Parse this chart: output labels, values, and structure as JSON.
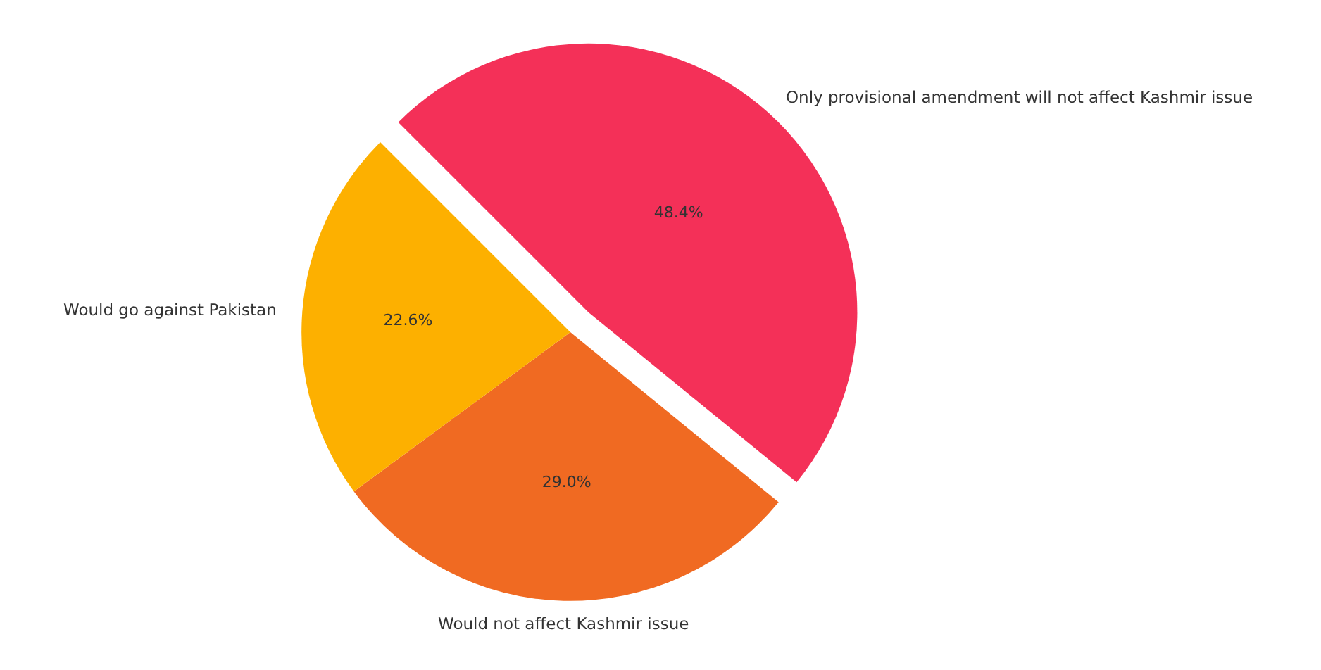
{
  "chart_data": {
    "type": "pie",
    "categories": [
      "Only provisional amendment will not affect Kashmir issue",
      "Would not affect Kashmir issue",
      "Would go against Pakistan"
    ],
    "values": [
      48.4,
      29.0,
      22.6
    ],
    "value_labels": [
      "48.4%",
      "29.0%",
      "22.6%"
    ],
    "colors": [
      "#f43058",
      "#f06a22",
      "#fdb000"
    ],
    "legend": false
  }
}
